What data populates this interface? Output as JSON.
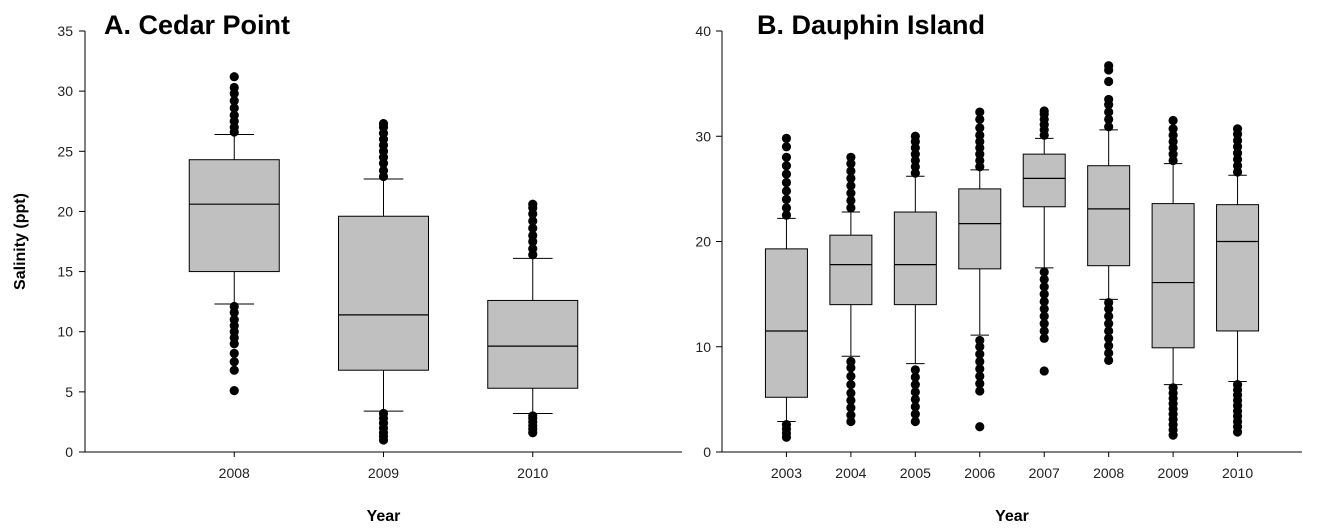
{
  "style": {
    "box_fill": "#c0c0c0",
    "stroke": "#000000",
    "outlier_color": "#000000",
    "background": "#ffffff"
  },
  "chart_data": [
    {
      "type": "box",
      "title": "A. Cedar Point",
      "xlabel": "Year",
      "ylabel": "Salinity (ppt)",
      "ylim": [
        0,
        35
      ],
      "yticks": [
        0,
        5,
        10,
        15,
        20,
        25,
        30,
        35
      ],
      "grid": false,
      "categories": [
        "2008",
        "2009",
        "2010"
      ],
      "boxes": [
        {
          "category": "2008",
          "whisker_low": 12.3,
          "q1": 15.0,
          "median": 20.6,
          "q3": 24.3,
          "whisker_high": 26.4,
          "outliers_low": [
            5.1,
            6.8,
            7.5,
            8.2,
            9.0,
            9.5,
            10.0,
            10.5,
            11.0,
            11.6,
            12.1
          ],
          "outliers_high": [
            26.6,
            27.0,
            27.5,
            28.0,
            28.6,
            29.2,
            29.8,
            30.3,
            31.2
          ]
        },
        {
          "category": "2009",
          "whisker_low": 3.4,
          "q1": 6.8,
          "median": 11.4,
          "q3": 19.6,
          "whisker_high": 22.7,
          "outliers_low": [
            1.0,
            1.3,
            1.6,
            2.0,
            2.4,
            2.8,
            3.2
          ],
          "outliers_high": [
            22.9,
            23.4,
            24.0,
            24.5,
            25.0,
            25.5,
            26.0,
            26.5,
            27.0,
            27.3
          ]
        },
        {
          "category": "2010",
          "whisker_low": 3.2,
          "q1": 5.3,
          "median": 8.8,
          "q3": 12.6,
          "whisker_high": 16.1,
          "outliers_low": [
            1.6,
            1.9,
            2.2,
            2.5,
            2.8,
            3.0
          ],
          "outliers_high": [
            16.4,
            16.9,
            17.5,
            18.0,
            18.6,
            19.2,
            19.8,
            20.3,
            20.6
          ]
        }
      ]
    },
    {
      "type": "box",
      "title": "B. Dauphin Island",
      "xlabel": "Year",
      "ylabel": "",
      "ylim": [
        0,
        40
      ],
      "yticks": [
        0,
        10,
        20,
        30,
        40
      ],
      "grid": false,
      "categories": [
        "2003",
        "2004",
        "2005",
        "2006",
        "2007",
        "2008",
        "2009",
        "2010"
      ],
      "boxes": [
        {
          "category": "2003",
          "whisker_low": 2.9,
          "q1": 5.2,
          "median": 11.5,
          "q3": 19.3,
          "whisker_high": 22.2,
          "outliers_low": [
            1.4,
            1.8,
            2.2,
            2.6
          ],
          "outliers_high": [
            22.5,
            23.2,
            24.0,
            24.8,
            25.6,
            26.4,
            27.2,
            28.0,
            29.0,
            29.8
          ]
        },
        {
          "category": "2004",
          "whisker_low": 9.1,
          "q1": 14.0,
          "median": 17.8,
          "q3": 20.6,
          "whisker_high": 22.8,
          "outliers_low": [
            2.9,
            3.5,
            4.2,
            4.9,
            5.6,
            6.4,
            7.2,
            8.0,
            8.6
          ],
          "outliers_high": [
            23.2,
            23.9,
            24.6,
            25.3,
            26.0,
            26.7,
            27.4,
            28.0
          ]
        },
        {
          "category": "2005",
          "whisker_low": 8.4,
          "q1": 14.0,
          "median": 17.8,
          "q3": 22.8,
          "whisker_high": 26.2,
          "outliers_low": [
            2.9,
            3.6,
            4.3,
            5.0,
            5.7,
            6.4,
            7.1,
            7.8
          ],
          "outliers_high": [
            26.5,
            27.1,
            27.7,
            28.3,
            28.9,
            29.5,
            30.0
          ]
        },
        {
          "category": "2006",
          "whisker_low": 11.1,
          "q1": 17.4,
          "median": 21.7,
          "q3": 25.0,
          "whisker_high": 26.8,
          "outliers_low": [
            2.4,
            5.8,
            6.5,
            7.2,
            7.9,
            8.6,
            9.3,
            10.0,
            10.6
          ],
          "outliers_high": [
            27.1,
            27.7,
            28.3,
            28.9,
            29.5,
            30.1,
            30.8,
            31.6,
            32.3
          ]
        },
        {
          "category": "2007",
          "whisker_low": 17.5,
          "q1": 23.3,
          "median": 26.0,
          "q3": 28.3,
          "whisker_high": 29.8,
          "outliers_low": [
            7.7,
            10.8,
            11.5,
            12.2,
            12.9,
            13.6,
            14.3,
            15.0,
            15.7,
            16.4,
            17.1
          ],
          "outliers_high": [
            30.1,
            30.6,
            31.1,
            31.6,
            32.1,
            32.4
          ]
        },
        {
          "category": "2008",
          "whisker_low": 14.5,
          "q1": 17.7,
          "median": 23.1,
          "q3": 27.2,
          "whisker_high": 30.6,
          "outliers_low": [
            8.7,
            9.4,
            10.1,
            10.8,
            11.5,
            12.2,
            12.9,
            13.6,
            14.2
          ],
          "outliers_high": [
            30.9,
            31.6,
            32.3,
            33.0,
            33.5,
            35.2,
            36.3,
            36.7
          ]
        },
        {
          "category": "2009",
          "whisker_low": 6.4,
          "q1": 9.9,
          "median": 16.1,
          "q3": 23.6,
          "whisker_high": 27.4,
          "outliers_low": [
            1.6,
            2.1,
            2.6,
            3.1,
            3.6,
            4.1,
            4.6,
            5.1,
            5.6,
            6.1
          ],
          "outliers_high": [
            27.7,
            28.3,
            28.9,
            29.5,
            30.1,
            30.7,
            31.5
          ]
        },
        {
          "category": "2010",
          "whisker_low": 6.7,
          "q1": 11.5,
          "median": 20.0,
          "q3": 23.5,
          "whisker_high": 26.3,
          "outliers_low": [
            1.9,
            2.4,
            2.9,
            3.4,
            3.9,
            4.4,
            4.9,
            5.4,
            5.9,
            6.4
          ],
          "outliers_high": [
            26.6,
            27.2,
            27.8,
            28.4,
            29.0,
            29.6,
            30.2,
            30.7
          ]
        }
      ]
    }
  ]
}
